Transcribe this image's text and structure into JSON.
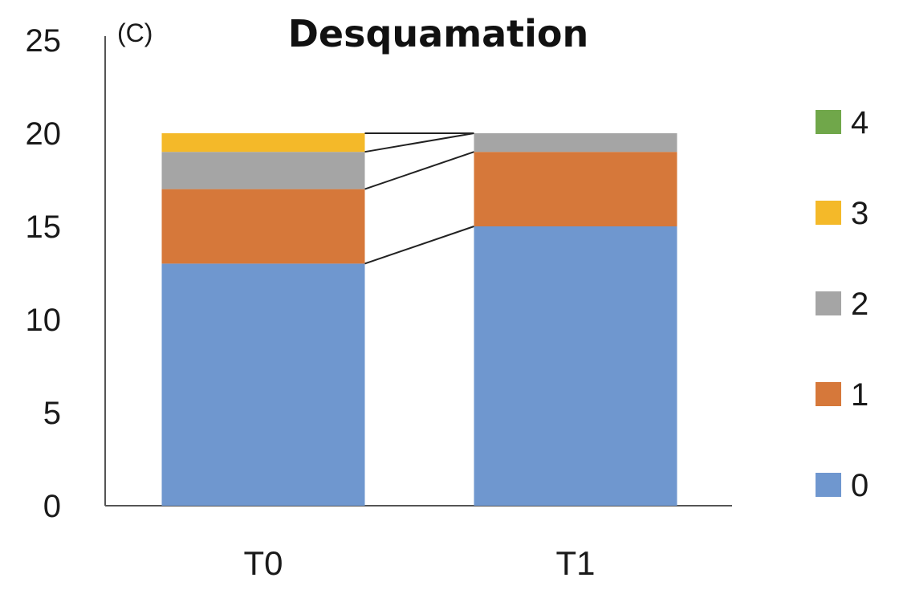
{
  "chart_data": {
    "type": "bar",
    "stacked": true,
    "panel_label": "(C)",
    "title": "Desquamation",
    "categories": [
      "T0",
      "T1"
    ],
    "series": [
      {
        "name": "0",
        "values": [
          13,
          15
        ],
        "color": "#6f97cf"
      },
      {
        "name": "1",
        "values": [
          4,
          4
        ],
        "color": "#d6783a"
      },
      {
        "name": "2",
        "values": [
          2,
          1
        ],
        "color": "#a5a5a5"
      },
      {
        "name": "3",
        "values": [
          1,
          0
        ],
        "color": "#f4b929"
      },
      {
        "name": "4",
        "values": [
          0,
          0
        ],
        "color": "#70a74a"
      }
    ],
    "ylim": [
      0,
      25
    ],
    "yticks": [
      "0",
      "5",
      "10",
      "15",
      "20",
      "25"
    ],
    "grid": false,
    "legend": "right",
    "connector_lines": true
  }
}
